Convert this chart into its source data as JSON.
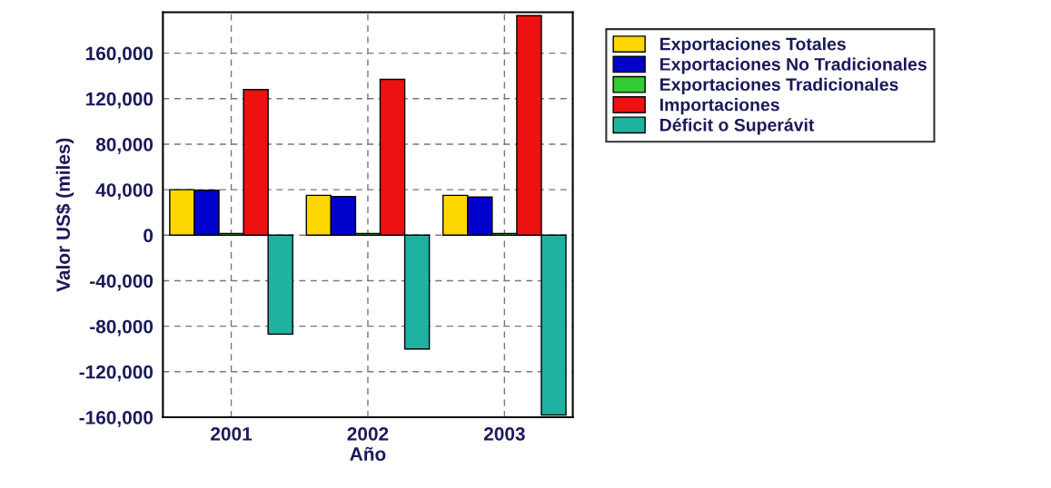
{
  "chart_data": {
    "type": "bar",
    "xlabel": "Año",
    "ylabel": "Valor US$ (miles)",
    "categories": [
      "2001",
      "2002",
      "2003"
    ],
    "series": [
      {
        "name": "Exportaciones Totales",
        "color": "#ffd700",
        "values": [
          40000,
          35000,
          35000
        ]
      },
      {
        "name": "Exportaciones No Tradicionales",
        "color": "#0000cc",
        "values": [
          39500,
          34000,
          33500
        ]
      },
      {
        "name": "Exportaciones Tradicionales",
        "color": "#33cc33",
        "values": [
          1500,
          1500,
          1500
        ]
      },
      {
        "name": "Importaciones",
        "color": "#ee1111",
        "values": [
          128000,
          137000,
          193000
        ]
      },
      {
        "name": "Déficit o Superávit",
        "color": "#20b2a0",
        "values": [
          -87000,
          -100000,
          -158000
        ]
      }
    ],
    "ylim": [
      -160000,
      196000
    ],
    "yticks": [
      {
        "value": -160000,
        "label": "-160,000"
      },
      {
        "value": -120000,
        "label": "-120,000"
      },
      {
        "value": -80000,
        "label": "-80,000"
      },
      {
        "value": -40000,
        "label": "-40,000"
      },
      0,
      {
        "value": 40000,
        "label": "40,000"
      },
      {
        "value": 80000,
        "label": "80,000"
      },
      {
        "value": 120000,
        "label": "120,000"
      },
      {
        "value": 160000,
        "label": "160,000"
      }
    ],
    "grid": true,
    "legend": "top right"
  }
}
